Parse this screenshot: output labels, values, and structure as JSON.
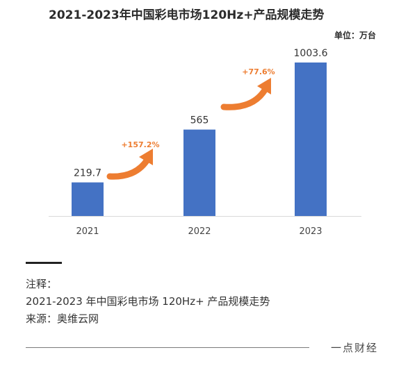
{
  "chart_data": {
    "type": "bar",
    "title": "2021-2023年中国彩电市场120Hz+产品规模走势",
    "unit": "单位：万台",
    "categories": [
      "2021",
      "2022",
      "2023"
    ],
    "values": [
      219.7,
      565,
      1003.6
    ],
    "value_labels": [
      "219.7",
      "565",
      "1003.6"
    ],
    "bar_color": "#4472C4",
    "arrow_color": "#ED7D31",
    "growth_annotations": [
      {
        "from": "2021",
        "to": "2022",
        "label": "+157.2%"
      },
      {
        "from": "2022",
        "to": "2023",
        "label": "+77.6%"
      }
    ],
    "grid": false,
    "legend": "none"
  },
  "notes": {
    "heading": "注释：",
    "line1": "2021-2023 年中国彩电市场 120Hz+ 产品规模走势",
    "source": "来源：奥维云网"
  },
  "footer": {
    "brand": "一点财经"
  }
}
